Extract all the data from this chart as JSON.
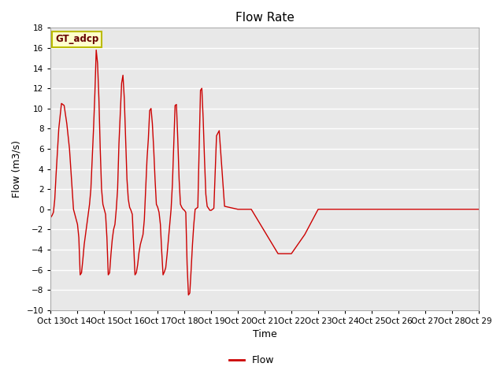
{
  "title": "Flow Rate",
  "xlabel": "Time",
  "ylabel": "Flow (m3/s)",
  "ylim": [
    -10,
    18
  ],
  "background_color": "#e8e8e8",
  "line_color": "#cc0000",
  "annotation_text": "GT_adcp",
  "annotation_bg": "#ffffcc",
  "annotation_edge": "#bbbb00",
  "legend_label": "Flow",
  "xtick_positions": [
    13,
    14,
    15,
    16,
    17,
    18,
    19,
    20,
    21,
    22,
    23,
    24,
    25,
    26,
    27,
    28,
    29
  ],
  "xtick_labels": [
    "Oct 13",
    "Oct 14",
    "Oct 15",
    "Oct 16",
    "Oct 17",
    "Oct 18",
    "Oct 19",
    "Oct 20",
    "Oct 21",
    "Oct 22",
    "Oct 23",
    "Oct 24",
    "Oct 25",
    "Oct 26",
    "Oct 27",
    "Oct 28",
    "Oct 29"
  ],
  "xlim": [
    13,
    29
  ],
  "x": [
    13.0,
    13.05,
    13.1,
    13.15,
    13.2,
    13.3,
    13.4,
    13.5,
    13.6,
    13.7,
    13.8,
    13.85,
    13.9,
    13.95,
    14.0,
    14.05,
    14.1,
    14.15,
    14.2,
    14.25,
    14.3,
    14.35,
    14.4,
    14.45,
    14.5,
    14.55,
    14.6,
    14.65,
    14.7,
    14.75,
    14.8,
    14.85,
    14.9,
    14.95,
    15.0,
    15.05,
    15.1,
    15.15,
    15.2,
    15.25,
    15.3,
    15.35,
    15.4,
    15.45,
    15.5,
    15.55,
    15.6,
    15.65,
    15.7,
    15.75,
    15.8,
    15.85,
    15.9,
    15.95,
    16.0,
    16.05,
    16.1,
    16.15,
    16.2,
    16.25,
    16.3,
    16.35,
    16.4,
    16.45,
    16.5,
    16.55,
    16.6,
    16.65,
    16.7,
    16.75,
    16.8,
    16.85,
    16.9,
    16.95,
    17.0,
    17.05,
    17.1,
    17.15,
    17.2,
    17.25,
    17.3,
    17.35,
    17.4,
    17.45,
    17.5,
    17.55,
    17.6,
    17.65,
    17.7,
    17.75,
    17.8,
    17.85,
    17.9,
    17.95,
    18.0,
    18.05,
    18.1,
    18.15,
    18.2,
    18.25,
    18.3,
    18.35,
    18.4,
    18.45,
    18.5,
    18.55,
    18.6,
    18.65,
    18.7,
    18.75,
    18.8,
    18.85,
    18.9,
    18.95,
    19.0,
    19.05,
    19.1,
    19.2,
    19.3,
    19.5,
    20.0,
    20.5,
    21.0,
    21.5,
    22.0,
    22.5,
    23.0,
    23.5,
    24.0,
    24.5,
    25.0,
    26.0,
    27.0,
    28.0,
    29.0
  ],
  "y": [
    -0.8,
    -0.6,
    -0.3,
    1.0,
    3.5,
    8.0,
    10.5,
    10.3,
    8.5,
    6.0,
    2.0,
    0.0,
    -0.5,
    -1.0,
    -1.5,
    -2.8,
    -6.5,
    -6.3,
    -5.0,
    -3.5,
    -2.5,
    -1.5,
    -0.5,
    0.5,
    2.0,
    5.0,
    8.0,
    11.5,
    15.8,
    14.5,
    11.0,
    6.0,
    2.0,
    0.5,
    0.0,
    -0.5,
    -2.8,
    -6.5,
    -6.3,
    -4.5,
    -3.0,
    -2.0,
    -1.5,
    0.0,
    2.0,
    6.5,
    9.5,
    12.5,
    13.3,
    11.0,
    7.0,
    3.0,
    1.0,
    0.2,
    -0.1,
    -0.5,
    -3.5,
    -6.5,
    -6.3,
    -5.5,
    -4.3,
    -3.5,
    -3.0,
    -2.5,
    -1.0,
    2.0,
    5.0,
    7.0,
    9.8,
    10.0,
    8.5,
    6.0,
    3.0,
    0.5,
    0.2,
    -0.3,
    -1.5,
    -4.2,
    -6.5,
    -6.2,
    -5.8,
    -4.5,
    -3.0,
    -1.5,
    0.0,
    2.5,
    6.5,
    10.3,
    10.4,
    7.0,
    3.0,
    0.5,
    0.2,
    0.0,
    -0.1,
    -0.3,
    -5.5,
    -8.5,
    -8.3,
    -6.0,
    -3.5,
    -1.5,
    0.0,
    0.1,
    0.2,
    6.0,
    11.8,
    12.0,
    9.0,
    5.0,
    1.5,
    0.3,
    0.1,
    -0.1,
    -0.1,
    0.0,
    0.1,
    7.3,
    7.8,
    0.3,
    0.0,
    0.0,
    -2.2,
    -4.4,
    -4.4,
    -2.5,
    0.0,
    0.0,
    0.0,
    0.0,
    0.0,
    0.0,
    0.0,
    0.0,
    0.0
  ]
}
